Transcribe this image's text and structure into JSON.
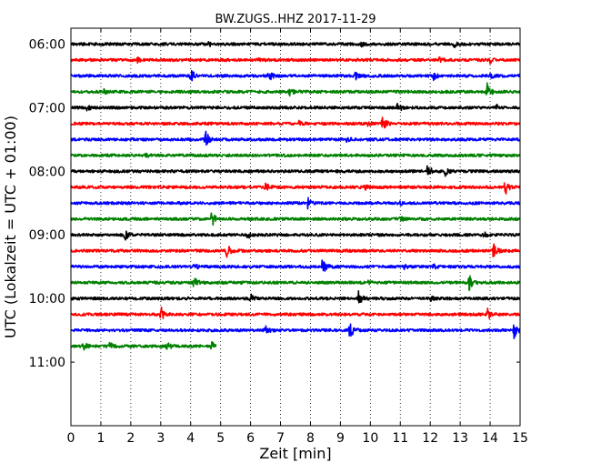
{
  "chart_data": {
    "type": "line",
    "title": "BW.ZUGS..HHZ 2017-11-29",
    "xlabel": "Zeit  [min]",
    "ylabel": "UTC (Lokalzeit = UTC + 01:00)",
    "xlim": [
      0,
      15
    ],
    "x_ticks": [
      "0",
      "1",
      "2",
      "3",
      "4",
      "5",
      "6",
      "7",
      "8",
      "9",
      "10",
      "11",
      "12",
      "13",
      "14",
      "15"
    ],
    "y_tick_labels": [
      "06:00",
      "07:00",
      "08:00",
      "09:00",
      "10:00",
      "11:00"
    ],
    "y_range_hours": [
      "05:45",
      "12:00"
    ],
    "trace_interval_minutes": 15,
    "grid": "vertical dotted at each minute",
    "colors": [
      "#000000",
      "#ff0000",
      "#0000ff",
      "#008000"
    ],
    "traces": [
      {
        "start": "06:00",
        "end_min": 15,
        "color": "black",
        "events": [
          [
            4.6,
            0.3
          ],
          [
            9.7,
            0.3
          ],
          [
            12.8,
            0.4
          ]
        ]
      },
      {
        "start": "06:15",
        "end_min": 15,
        "color": "red",
        "events": [
          [
            2.2,
            0.3
          ],
          [
            6.2,
            0.2
          ],
          [
            12.3,
            0.3
          ],
          [
            14.0,
            0.3
          ]
        ]
      },
      {
        "start": "06:30",
        "end_min": 15,
        "color": "blue",
        "events": [
          [
            4.0,
            1.0
          ],
          [
            6.6,
            0.7
          ],
          [
            9.5,
            0.4
          ],
          [
            12.1,
            0.5
          ],
          [
            14.0,
            0.3
          ]
        ]
      },
      {
        "start": "06:45",
        "end_min": 15,
        "color": "green",
        "events": [
          [
            1.1,
            0.3
          ],
          [
            7.3,
            0.6
          ],
          [
            13.9,
            1.0
          ]
        ]
      },
      {
        "start": "07:00",
        "end_min": 15,
        "color": "black",
        "events": [
          [
            0.5,
            0.5
          ],
          [
            10.9,
            0.8
          ],
          [
            14.2,
            0.3
          ]
        ]
      },
      {
        "start": "07:15",
        "end_min": 15,
        "color": "red",
        "events": [
          [
            7.6,
            0.3
          ],
          [
            9.9,
            0.3
          ],
          [
            10.4,
            1.0
          ]
        ]
      },
      {
        "start": "07:30",
        "end_min": 15,
        "color": "blue",
        "events": [
          [
            4.5,
            1.1
          ],
          [
            9.2,
            0.3
          ]
        ]
      },
      {
        "start": "07:45",
        "end_min": 15,
        "color": "green",
        "events": [
          [
            2.5,
            0.2
          ]
        ]
      },
      {
        "start": "08:00",
        "end_min": 15,
        "color": "black",
        "events": [
          [
            11.9,
            1.1
          ],
          [
            12.5,
            0.5
          ]
        ]
      },
      {
        "start": "08:15",
        "end_min": 15,
        "color": "red",
        "events": [
          [
            6.5,
            0.5
          ],
          [
            9.8,
            0.3
          ],
          [
            14.5,
            1.0
          ]
        ]
      },
      {
        "start": "08:30",
        "end_min": 15,
        "color": "blue",
        "events": [
          [
            7.9,
            0.7
          ],
          [
            11.0,
            0.2
          ]
        ]
      },
      {
        "start": "08:45",
        "end_min": 15,
        "color": "green",
        "events": [
          [
            4.7,
            1.0
          ],
          [
            11.0,
            0.3
          ]
        ]
      },
      {
        "start": "09:00",
        "end_min": 15,
        "color": "black",
        "events": [
          [
            1.8,
            0.8
          ],
          [
            5.9,
            0.4
          ],
          [
            13.8,
            0.3
          ]
        ]
      },
      {
        "start": "09:15",
        "end_min": 15,
        "color": "red",
        "events": [
          [
            5.2,
            1.0
          ],
          [
            14.1,
            0.9
          ]
        ]
      },
      {
        "start": "09:30",
        "end_min": 15,
        "color": "blue",
        "events": [
          [
            4.1,
            0.4
          ],
          [
            8.4,
            1.0
          ],
          [
            11.1,
            0.3
          ],
          [
            12.1,
            0.3
          ]
        ]
      },
      {
        "start": "09:45",
        "end_min": 15,
        "color": "green",
        "events": [
          [
            4.1,
            0.8
          ],
          [
            9.9,
            0.2
          ],
          [
            13.3,
            1.2
          ]
        ]
      },
      {
        "start": "10:00",
        "end_min": 15,
        "color": "black",
        "events": [
          [
            6.0,
            0.5
          ],
          [
            9.6,
            0.8
          ],
          [
            12.0,
            0.3
          ]
        ]
      },
      {
        "start": "10:15",
        "end_min": 15,
        "color": "red",
        "events": [
          [
            3.0,
            1.0
          ],
          [
            13.9,
            0.8
          ]
        ]
      },
      {
        "start": "10:30",
        "end_min": 15,
        "color": "blue",
        "events": [
          [
            6.5,
            0.8
          ],
          [
            9.3,
            1.4
          ],
          [
            14.8,
            0.9
          ]
        ]
      },
      {
        "start": "10:45",
        "end_min": 4.85,
        "color": "green",
        "events": [
          [
            0.4,
            0.6
          ],
          [
            1.3,
            0.5
          ],
          [
            3.2,
            0.6
          ],
          [
            4.7,
            0.5
          ]
        ]
      }
    ]
  }
}
